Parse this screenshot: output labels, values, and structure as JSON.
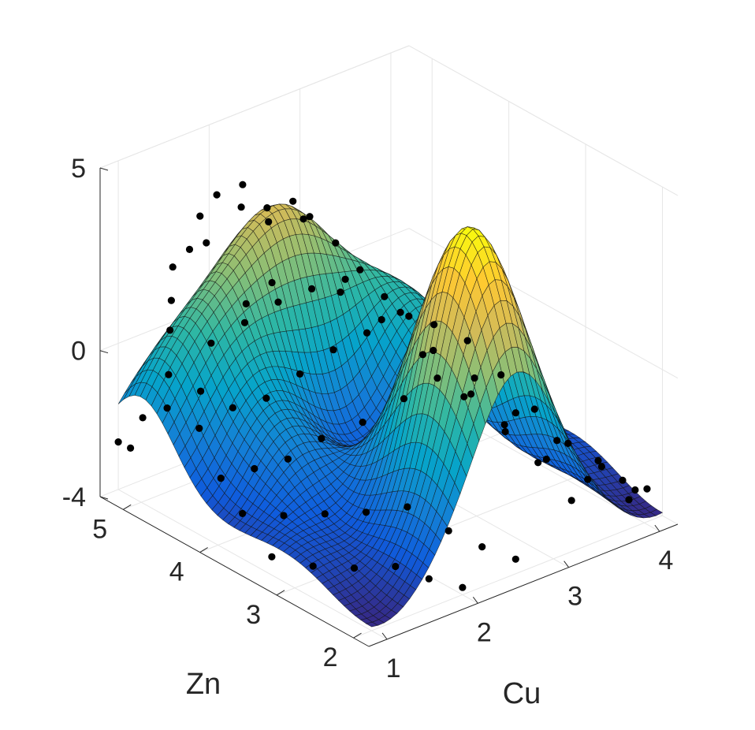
{
  "chart_data": {
    "type": "surface3d",
    "title": "",
    "xlabel": "Cu",
    "ylabel": "Zn",
    "zlabel": "",
    "xlim": [
      0.8,
      4.2
    ],
    "ylim": [
      1.8,
      5.3
    ],
    "zlim": [
      -4,
      5
    ],
    "xticks": [
      "1",
      "2",
      "3",
      "4"
    ],
    "xtick_values": [
      1,
      2,
      3,
      4
    ],
    "yticks": [
      "2",
      "3",
      "4",
      "5"
    ],
    "ytick_values": [
      2,
      3,
      4,
      5
    ],
    "zticks": [
      "-4",
      "0",
      "5"
    ],
    "ztick_values": [
      -4,
      0,
      5
    ],
    "grid": true,
    "colormap": "parula",
    "colormap_stops": [
      "#352a87",
      "#0f5cdd",
      "#1481d6",
      "#06a4ca",
      "#2eb7a4",
      "#87bf77",
      "#d1bb59",
      "#fec832",
      "#f9fb0e"
    ],
    "surface": {
      "description_of_shape": "smooth peaked surface",
      "peak": {
        "x": 2.6,
        "y": 2.5,
        "z": 4.5
      },
      "ridge_peak": {
        "x": 2.4,
        "y": 5.0,
        "z": 2.6
      },
      "min_z": -4
    },
    "scatter_points": [
      [
        1.0,
        5.3,
        -2.7
      ],
      [
        1.05,
        5.2,
        -2.8
      ],
      [
        1.1,
        5.1,
        -1.9
      ],
      [
        1.2,
        4.9,
        -1.5
      ],
      [
        1.3,
        5.0,
        -0.8
      ],
      [
        1.4,
        5.1,
        0.2
      ],
      [
        1.5,
        5.2,
        0.8
      ],
      [
        1.6,
        5.3,
        1.5
      ],
      [
        1.7,
        5.2,
        2.0
      ],
      [
        1.8,
        5.1,
        2.2
      ],
      [
        1.9,
        5.3,
        2.6
      ],
      [
        2.0,
        5.2,
        3.2
      ],
      [
        2.1,
        5.0,
        3.0
      ],
      [
        2.2,
        5.1,
        3.4
      ],
      [
        2.3,
        4.9,
        2.9
      ],
      [
        2.4,
        5.0,
        2.3
      ],
      [
        2.5,
        4.8,
        3.0
      ],
      [
        2.6,
        4.7,
        2.6
      ],
      [
        2.7,
        4.9,
        2.2
      ],
      [
        2.8,
        4.6,
        1.8
      ],
      [
        2.9,
        4.4,
        1.2
      ],
      [
        3.0,
        4.2,
        0.6
      ],
      [
        3.1,
        4.0,
        0.2
      ],
      [
        3.2,
        3.8,
        -0.6
      ],
      [
        3.4,
        3.5,
        -1.2
      ],
      [
        3.6,
        3.2,
        -2.0
      ],
      [
        3.8,
        2.9,
        -2.6
      ],
      [
        4.0,
        2.6,
        -3.0
      ],
      [
        4.1,
        2.4,
        -3.4
      ],
      [
        4.2,
        2.2,
        -3.5
      ],
      [
        1.3,
        4.6,
        -1.8
      ],
      [
        1.5,
        4.4,
        -1.2
      ],
      [
        1.7,
        4.2,
        -0.9
      ],
      [
        1.9,
        4.0,
        -0.2
      ],
      [
        2.1,
        3.8,
        0.5
      ],
      [
        2.3,
        3.6,
        1.0
      ],
      [
        2.5,
        3.4,
        1.6
      ],
      [
        2.7,
        3.2,
        1.3
      ],
      [
        2.9,
        3.0,
        0.9
      ],
      [
        3.1,
        2.8,
        0.0
      ],
      [
        3.3,
        2.6,
        -0.9
      ],
      [
        3.5,
        2.4,
        -1.8
      ],
      [
        3.7,
        2.2,
        -2.4
      ],
      [
        3.9,
        2.0,
        -3.0
      ],
      [
        1.2,
        4.2,
        -2.6
      ],
      [
        1.4,
        4.0,
        -2.3
      ],
      [
        1.6,
        3.8,
        -2.0
      ],
      [
        1.8,
        3.6,
        -1.4
      ],
      [
        2.0,
        3.3,
        -0.8
      ],
      [
        2.2,
        3.0,
        0.0
      ],
      [
        2.4,
        2.8,
        0.6
      ],
      [
        2.6,
        2.6,
        0.2
      ],
      [
        2.8,
        2.4,
        -0.6
      ],
      [
        3.0,
        2.2,
        -1.6
      ],
      [
        3.2,
        2.0,
        -2.6
      ],
      [
        1.1,
        3.8,
        -3.0
      ],
      [
        1.3,
        3.5,
        -2.9
      ],
      [
        1.5,
        3.2,
        -2.7
      ],
      [
        1.7,
        2.9,
        -2.5
      ],
      [
        1.9,
        2.6,
        -2.2
      ],
      [
        2.1,
        2.3,
        -2.7
      ],
      [
        2.3,
        2.1,
        -3.1
      ],
      [
        2.5,
        1.9,
        -3.4
      ],
      [
        1.0,
        3.3,
        -3.5
      ],
      [
        1.2,
        3.0,
        -3.6
      ],
      [
        1.4,
        2.7,
        -3.5
      ],
      [
        1.6,
        2.4,
        -3.3
      ],
      [
        1.8,
        2.2,
        -3.6
      ],
      [
        2.0,
        2.0,
        -3.8
      ],
      [
        2.6,
        4.3,
        1.0
      ],
      [
        2.8,
        4.0,
        0.4
      ],
      [
        3.0,
        3.7,
        -0.4
      ],
      [
        3.2,
        3.4,
        -1.4
      ],
      [
        3.4,
        3.1,
        -2.2
      ],
      [
        3.6,
        2.8,
        -2.8
      ],
      [
        3.8,
        2.5,
        -3.2
      ],
      [
        4.0,
        2.2,
        -3.6
      ],
      [
        1.6,
        4.8,
        0.0
      ],
      [
        1.8,
        4.6,
        0.6
      ],
      [
        2.0,
        4.4,
        1.2
      ],
      [
        2.2,
        4.2,
        1.6
      ],
      [
        2.4,
        4.0,
        1.9
      ],
      [
        1.4,
        4.7,
        -1.0
      ],
      [
        1.9,
        4.7,
        0.9
      ],
      [
        2.1,
        4.6,
        1.4
      ]
    ]
  }
}
